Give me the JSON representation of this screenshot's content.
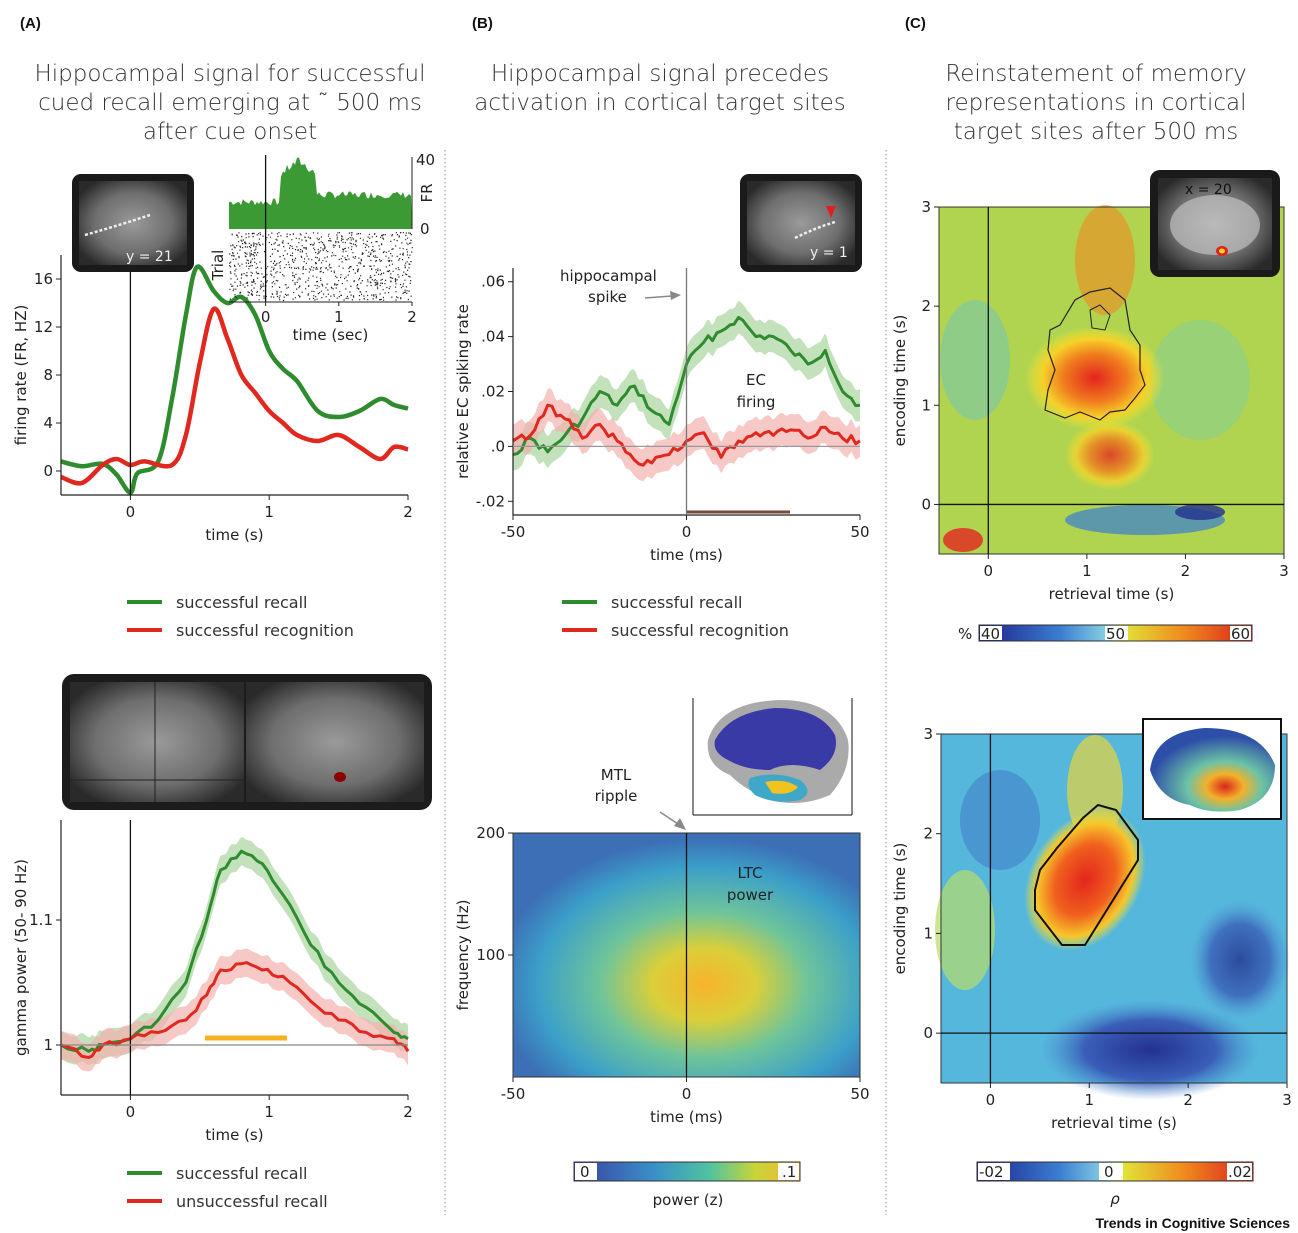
{
  "panel_labels": {
    "a": "(A)",
    "b": "(B)",
    "c": "(C)"
  },
  "titles": {
    "a": [
      "Hippocampal signal for successful",
      "cued recall emerging at ˜ 500 ms",
      "after cue onset"
    ],
    "b": [
      "Hippocampal signal precedes",
      "activation in cortical target sites"
    ],
    "c": [
      "Reinstatement of memory",
      "representations in cortical",
      "target sites after 500 ms"
    ]
  },
  "credit": "Trends in Cognitive Sciences",
  "inset_labels": {
    "a_top": "y = 21",
    "b_top": "y = 1",
    "c_top": "x = 20"
  },
  "colors": {
    "green": "#2e8b2e",
    "red": "#e0281e",
    "green_band": "#a9d6a0",
    "red_band": "#f3b2ae",
    "raster_green": "#3c9a34"
  },
  "legends": {
    "a_top": [
      "successful recall",
      "successful  recognition"
    ],
    "b_top": [
      "successful recall",
      "successful  recognition"
    ],
    "a_bottom": [
      "successful recall",
      "unsuccessful recall"
    ]
  },
  "annotations": {
    "hippo_spike": [
      "hippocampal",
      "spike"
    ],
    "ec_firing": [
      "EC",
      "firing"
    ],
    "mtl_ripple": [
      "MTL",
      "ripple"
    ],
    "ltc_power": [
      "LTC",
      "power"
    ]
  },
  "chart_data": [
    {
      "id": "a_top",
      "type": "line",
      "xlabel": "time (s)",
      "ylabel": "firing rate (FR, HZ)",
      "xlim": [
        -0.5,
        2
      ],
      "ylim": [
        -2,
        18
      ],
      "xticks": [
        "0",
        "1",
        "2"
      ],
      "yticks": [
        "0",
        "4",
        "8",
        "12",
        "16"
      ],
      "series": [
        {
          "name": "successful recall",
          "x": [
            -0.5,
            -0.35,
            -0.2,
            -0.1,
            0,
            0.05,
            0.2,
            0.3,
            0.4,
            0.48,
            0.6,
            0.7,
            0.8,
            0.9,
            1.0,
            1.1,
            1.2,
            1.35,
            1.5,
            1.65,
            1.8,
            1.9,
            2.0
          ],
          "y": [
            0.8,
            0.4,
            0.6,
            -0.3,
            -1.8,
            -0.2,
            0.8,
            6,
            13,
            17,
            15,
            14,
            14.5,
            13,
            10,
            8.5,
            7.5,
            5,
            4.5,
            5,
            6,
            5.5,
            5.2
          ]
        },
        {
          "name": "successful  recognition",
          "x": [
            -0.5,
            -0.35,
            -0.2,
            -0.1,
            0,
            0.1,
            0.3,
            0.4,
            0.5,
            0.6,
            0.7,
            0.8,
            0.9,
            1.0,
            1.1,
            1.2,
            1.35,
            1.5,
            1.65,
            1.8,
            1.9,
            2.0
          ],
          "y": [
            -0.5,
            -1.0,
            0.5,
            1.0,
            0.5,
            0.8,
            0.5,
            3,
            9,
            13.5,
            11,
            8,
            6.5,
            5,
            4,
            3,
            2.5,
            3,
            2,
            1,
            2,
            1.8
          ]
        }
      ]
    },
    {
      "id": "a_top_inset",
      "type": "bar",
      "xlabel": "time (sec)",
      "ylabel": "Trial",
      "y2label": "FR",
      "xlim": [
        -0.5,
        2
      ],
      "ylim": [
        0,
        40
      ],
      "xticks": [
        "0",
        "1",
        "2"
      ],
      "yticks": [
        "0",
        "40"
      ]
    },
    {
      "id": "a_bottom",
      "type": "line",
      "xlabel": "time (s)",
      "ylabel": "gamma power (50- 90 Hz)",
      "xlim": [
        -0.5,
        2
      ],
      "ylim": [
        0.96,
        1.18
      ],
      "xticks": [
        "0",
        "1",
        "2"
      ],
      "yticks": [
        "1",
        "1.1"
      ],
      "series": [
        {
          "name": "successful recall",
          "x": [
            -0.5,
            -0.3,
            -0.2,
            0,
            0.2,
            0.4,
            0.55,
            0.65,
            0.8,
            0.95,
            1.1,
            1.3,
            1.5,
            1.7,
            1.9,
            2.0
          ],
          "y": [
            1.0,
            0.995,
            1.0,
            1.005,
            1.02,
            1.05,
            1.1,
            1.14,
            1.155,
            1.145,
            1.12,
            1.08,
            1.05,
            1.03,
            1.01,
            1.005
          ]
        },
        {
          "name": "unsuccessful recall",
          "x": [
            -0.5,
            -0.3,
            -0.2,
            0,
            0.2,
            0.4,
            0.55,
            0.65,
            0.8,
            0.95,
            1.1,
            1.3,
            1.5,
            1.7,
            1.9,
            2.0
          ],
          "y": [
            1.0,
            0.99,
            1.0,
            1.005,
            1.01,
            1.02,
            1.04,
            1.06,
            1.065,
            1.06,
            1.055,
            1.035,
            1.02,
            1.01,
            1.005,
            0.995
          ]
        }
      ]
    },
    {
      "id": "b_top",
      "type": "line",
      "xlabel": "time (ms)",
      "ylabel": "relative EC spiking rate",
      "xlim": [
        -50,
        50
      ],
      "ylim": [
        -0.025,
        0.065
      ],
      "xticks": [
        "-50",
        "0",
        "50"
      ],
      "yticks": [
        "-.02",
        ".0",
        ".02",
        ".04",
        ".06"
      ],
      "series": [
        {
          "name": "successful recall",
          "x": [
            -50,
            -45,
            -40,
            -35,
            -30,
            -25,
            -20,
            -15,
            -10,
            -5,
            0,
            5,
            10,
            15,
            20,
            25,
            30,
            35,
            40,
            45,
            50
          ],
          "y": [
            -0.003,
            0.003,
            -0.002,
            0.004,
            0.01,
            0.02,
            0.015,
            0.022,
            0.013,
            0.008,
            0.03,
            0.038,
            0.042,
            0.047,
            0.04,
            0.04,
            0.035,
            0.03,
            0.035,
            0.02,
            0.015
          ]
        },
        {
          "name": "successful  recognition",
          "x": [
            -50,
            -45,
            -40,
            -35,
            -30,
            -25,
            -20,
            -15,
            -10,
            -5,
            0,
            5,
            10,
            15,
            20,
            25,
            30,
            35,
            40,
            45,
            50
          ],
          "y": [
            0.002,
            0.004,
            0.015,
            0.01,
            0.003,
            0.008,
            0.002,
            -0.005,
            -0.006,
            -0.003,
            0.002,
            0.005,
            -0.004,
            0.002,
            0.005,
            0.004,
            0.006,
            0.003,
            0.007,
            0.003,
            0.002
          ]
        }
      ]
    },
    {
      "id": "b_bottom",
      "type": "heatmap",
      "xlabel": "time (ms)",
      "ylabel": "frequency (Hz)",
      "xlim": [
        -50,
        50
      ],
      "ylim": [
        0,
        200
      ],
      "xticks": [
        "-50",
        "0",
        "50"
      ],
      "yticks": [
        "100",
        "200"
      ],
      "colorbar": {
        "label": "power (z)",
        "ticks": [
          "0",
          ".1"
        ]
      }
    },
    {
      "id": "c_top",
      "type": "heatmap",
      "xlabel": "retrieval time (s)",
      "ylabel": "encoding time (s)",
      "xlim": [
        -0.5,
        3
      ],
      "ylim": [
        -0.5,
        3
      ],
      "xticks": [
        "0",
        "1",
        "2",
        "3"
      ],
      "yticks": [
        "0",
        "1",
        "2",
        "3"
      ],
      "colorbar": {
        "unit": "%",
        "ticks": [
          "40",
          "50",
          "60"
        ]
      }
    },
    {
      "id": "c_bottom",
      "type": "heatmap",
      "xlabel": "retrieval time (s)",
      "ylabel": "encoding time (s)",
      "xlim": [
        -0.5,
        3
      ],
      "ylim": [
        -0.5,
        3
      ],
      "xticks": [
        "0",
        "1",
        "2",
        "3"
      ],
      "yticks": [
        "0",
        "1",
        "2",
        "3"
      ],
      "colorbar": {
        "label": "ρ",
        "ticks": [
          "-02",
          "0",
          ".02"
        ]
      }
    }
  ]
}
